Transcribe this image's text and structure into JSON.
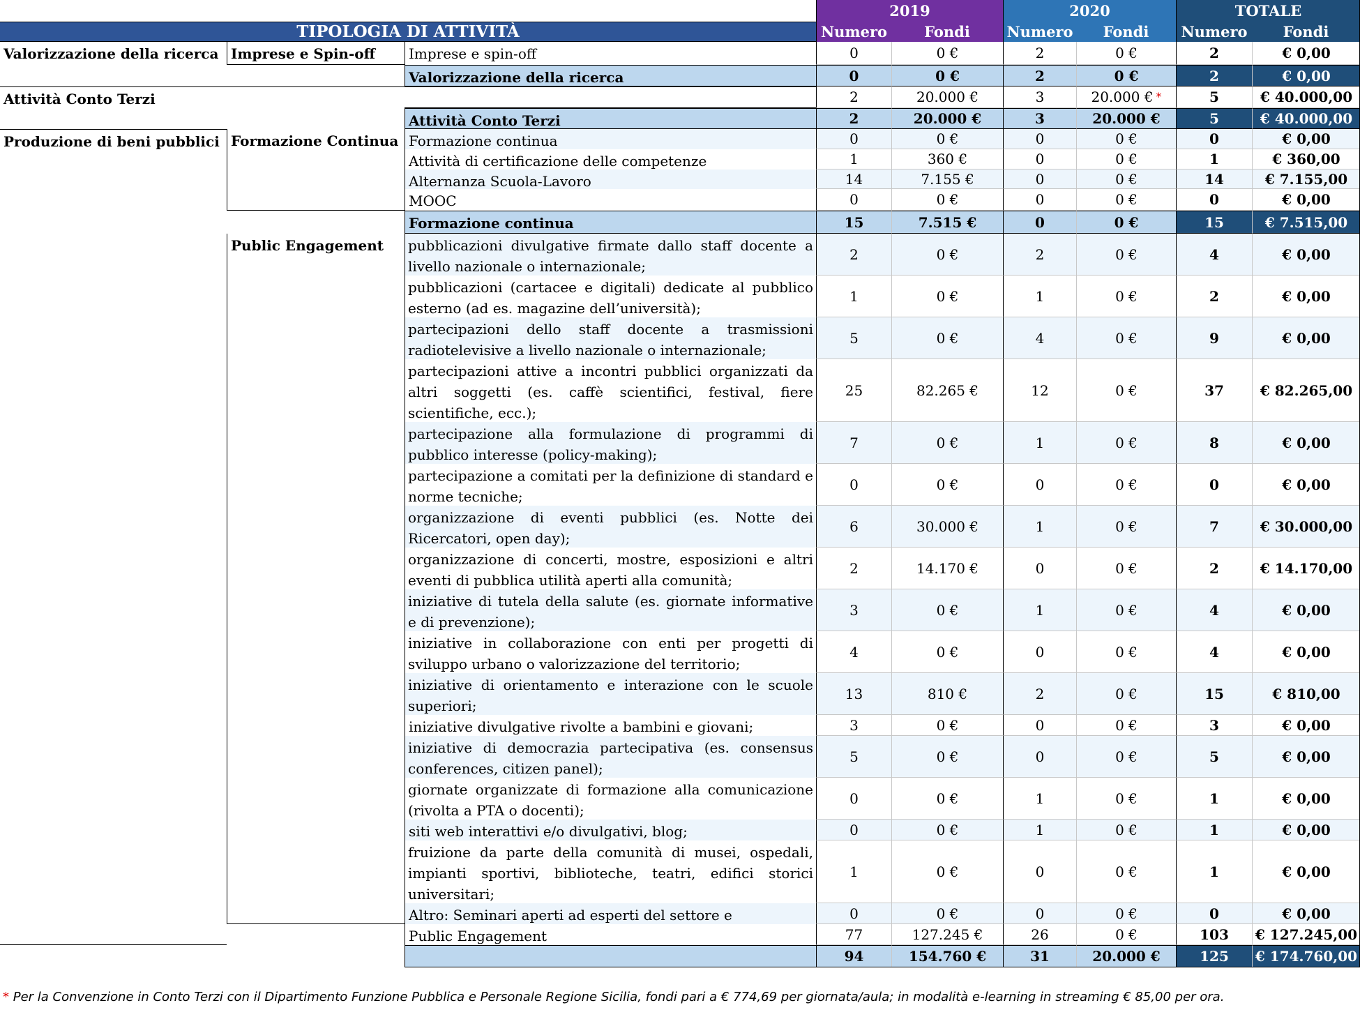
{
  "header": {
    "title": "TIPOLOGIA DI ATTIVITÀ",
    "years": [
      "2019",
      "2020",
      "TOTALE"
    ],
    "numero": "Numero",
    "fondi": "Fondi"
  },
  "colors": {
    "header_title_bg": "#2F5597",
    "year_2019_bg": "#7030A0",
    "year_2020_bg": "#2E75B6",
    "totale_bg": "#1F4E79",
    "subtotal_bg": "#BDD7EE",
    "subtotal_total_bg": "#1F4E79",
    "row_alt_bg": "#EDF5FC",
    "grand_total_bg": "#E2EFDA",
    "grand_total_dark_bg": "#375623"
  },
  "categories": {
    "valorizzazione": "Valorizzazione della ricerca",
    "conto_terzi": "Attività Conto Terzi",
    "beni_pubblici": "Produzione di beni pubblici"
  },
  "subcategories": {
    "imprese": "Imprese e Spin-off",
    "formazione": "Formazione Continua",
    "public_engagement": "Public Engagement"
  },
  "rows": [
    {
      "label": "Imprese e spin-off",
      "n2019": "0",
      "f2019": "0 €",
      "n2020": "2",
      "f2020": "0 €",
      "ntot": "2",
      "ftot": "€ 0,00"
    },
    {
      "label": "Valorizzazione della ricerca",
      "n2019": "0",
      "f2019": "0 €",
      "n2020": "2",
      "f2020": "0 €",
      "ntot": "2",
      "ftot": "€ 0,00"
    },
    {
      "label": "",
      "n2019": "2",
      "f2019": "20.000 €",
      "n2020": "3",
      "f2020": "20.000 €",
      "f2020_mark": "*",
      "ntot": "5",
      "ftot": "€ 40.000,00"
    },
    {
      "label": "Attività Conto Terzi",
      "n2019": "2",
      "f2019": "20.000 €",
      "n2020": "3",
      "f2020": "20.000 €",
      "ntot": "5",
      "ftot": "€ 40.000,00"
    },
    {
      "label": "Formazione continua",
      "n2019": "0",
      "f2019": "0 €",
      "n2020": "0",
      "f2020": "0 €",
      "ntot": "0",
      "ftot": "€ 0,00"
    },
    {
      "label": "Attività di certificazione delle competenze",
      "n2019": "1",
      "f2019": "360 €",
      "n2020": "0",
      "f2020": "0 €",
      "ntot": "1",
      "ftot": "€ 360,00"
    },
    {
      "label": "Alternanza Scuola-Lavoro",
      "n2019": "14",
      "f2019": "7.155 €",
      "n2020": "0",
      "f2020": "0 €",
      "ntot": "14",
      "ftot": "€ 7.155,00"
    },
    {
      "label": "MOOC",
      "n2019": "0",
      "f2019": "0 €",
      "n2020": "0",
      "f2020": "0 €",
      "ntot": "0",
      "ftot": "€ 0,00"
    },
    {
      "label": "Formazione continua",
      "n2019": "15",
      "f2019": "7.515 €",
      "n2020": "0",
      "f2020": "0 €",
      "ntot": "15",
      "ftot": "€ 7.515,00"
    },
    {
      "label": "pubblicazioni divulgative firmate dallo staff docente a livello nazionale o internazionale;",
      "n2019": "2",
      "f2019": "0 €",
      "n2020": "2",
      "f2020": "0 €",
      "ntot": "4",
      "ftot": "€ 0,00"
    },
    {
      "label": "pubblicazioni (cartacee e digitali) dedicate al pubblico esterno (ad es. magazine dell’università);",
      "n2019": "1",
      "f2019": "0 €",
      "n2020": "1",
      "f2020": "0 €",
      "ntot": "2",
      "ftot": "€ 0,00"
    },
    {
      "label": "partecipazioni dello staff docente a trasmissioni radiotelevisive a livello nazionale o internazionale;",
      "n2019": "5",
      "f2019": "0 €",
      "n2020": "4",
      "f2020": "0 €",
      "ntot": "9",
      "ftot": "€ 0,00"
    },
    {
      "label": "partecipazioni attive a incontri pubblici organizzati da altri soggetti (es. caffè scientifici, festival, fiere scientifiche, ecc.);",
      "n2019": "25",
      "f2019": "82.265 €",
      "n2020": "12",
      "f2020": "0 €",
      "ntot": "37",
      "ftot": "€ 82.265,00"
    },
    {
      "label": "partecipazione alla formulazione di programmi di pubblico interesse (policy-making);",
      "n2019": "7",
      "f2019": "0 €",
      "n2020": "1",
      "f2020": "0 €",
      "ntot": "8",
      "ftot": "€ 0,00"
    },
    {
      "label": "partecipazione a comitati per la definizione di standard e norme tecniche;",
      "n2019": "0",
      "f2019": "0 €",
      "n2020": "0",
      "f2020": "0 €",
      "ntot": "0",
      "ftot": "€ 0,00"
    },
    {
      "label": "organizzazione di eventi pubblici (es. Notte dei Ricercatori, open day);",
      "n2019": "6",
      "f2019": "30.000 €",
      "n2020": "1",
      "f2020": "0 €",
      "ntot": "7",
      "ftot": "€ 30.000,00"
    },
    {
      "label": "organizzazione di concerti, mostre, esposizioni e altri eventi di pubblica utilità aperti alla comunità;",
      "n2019": "2",
      "f2019": "14.170 €",
      "n2020": "0",
      "f2020": "0 €",
      "ntot": "2",
      "ftot": "€ 14.170,00"
    },
    {
      "label": "iniziative di tutela della salute (es. giornate informative e di prevenzione);",
      "n2019": "3",
      "f2019": "0 €",
      "n2020": "1",
      "f2020": "0 €",
      "ntot": "4",
      "ftot": "€ 0,00"
    },
    {
      "label": "iniziative in collaborazione con enti per progetti di sviluppo urbano o valorizzazione del territorio;",
      "n2019": "4",
      "f2019": "0 €",
      "n2020": "0",
      "f2020": "0 €",
      "ntot": "4",
      "ftot": "€ 0,00"
    },
    {
      "label": "iniziative di orientamento e interazione con le scuole superiori;",
      "n2019": "13",
      "f2019": "810 €",
      "n2020": "2",
      "f2020": "0 €",
      "ntot": "15",
      "ftot": "€ 810,00"
    },
    {
      "label": "iniziative divulgative rivolte a bambini e giovani;",
      "n2019": "3",
      "f2019": "0 €",
      "n2020": "0",
      "f2020": "0 €",
      "ntot": "3",
      "ftot": "€ 0,00"
    },
    {
      "label": "iniziative di democrazia partecipativa (es. consensus conferences, citizen panel);",
      "n2019": "5",
      "f2019": "0 €",
      "n2020": "0",
      "f2020": "0 €",
      "ntot": "5",
      "ftot": "€ 0,00"
    },
    {
      "label": "giornate organizzate di formazione alla comunicazione (rivolta a PTA o docenti);",
      "n2019": "0",
      "f2019": "0 €",
      "n2020": "1",
      "f2020": "0 €",
      "ntot": "1",
      "ftot": "€ 0,00"
    },
    {
      "label": "siti web interattivi e/o divulgativi, blog;",
      "n2019": "0",
      "f2019": "0 €",
      "n2020": "1",
      "f2020": "0 €",
      "ntot": "1",
      "ftot": "€ 0,00"
    },
    {
      "label": "fruizione da parte della comunità di musei, ospedali, impianti sportivi, biblioteche, teatri, edifici storici universitari;",
      "n2019": "1",
      "f2019": "0 €",
      "n2020": "0",
      "f2020": "0 €",
      "ntot": "1",
      "ftot": "€ 0,00"
    },
    {
      "label": "Altro: Seminari aperti ad esperti del settore e stakeholders",
      "n2019": "0",
      "f2019": "0 €",
      "n2020": "0",
      "f2020": "0 €",
      "ntot": "0",
      "ftot": "€ 0,00"
    },
    {
      "label": "Public Engagement",
      "n2019": "77",
      "f2019": "127.245 €",
      "n2020": "26",
      "f2020": "0 €",
      "ntot": "103",
      "ftot": "€ 127.245,00"
    },
    {
      "label": "",
      "n2019": "94",
      "f2019": "154.760 €",
      "n2020": "31",
      "f2020": "20.000 €",
      "ntot": "125",
      "ftot": "€ 174.760,00"
    }
  ],
  "footnote": {
    "mark": "*",
    "text": "Per la Convenzione in Conto Terzi con il Dipartimento Funzione Pubblica e Personale Regione Sicilia, fondi pari a € 774,69 per giornata/aula; in modalità e-learning in streaming € 85,00 per ora."
  }
}
